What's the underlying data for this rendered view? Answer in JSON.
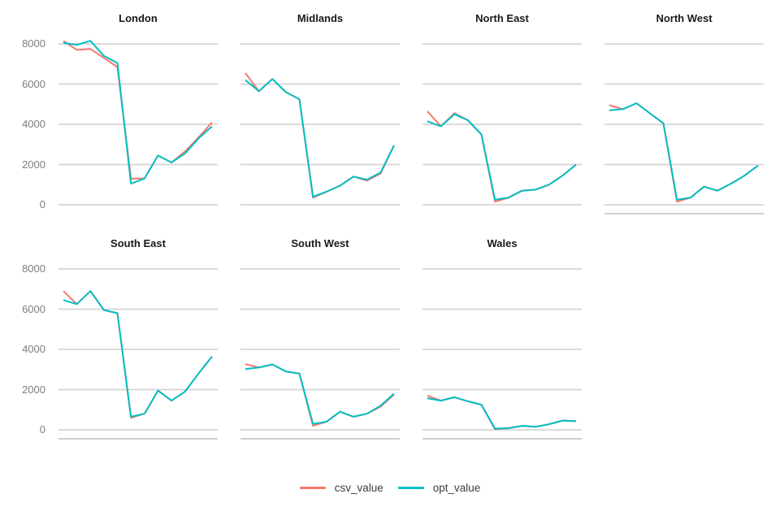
{
  "chart_data": {
    "type": "line",
    "title": "",
    "xlabel": "",
    "ylabel": "",
    "ylim": [
      0,
      8000
    ],
    "yticks": [
      0,
      2000,
      4000,
      6000,
      8000
    ],
    "ytick_labels": [
      "0",
      "2000",
      "4000",
      "6000",
      "8000"
    ],
    "x_tick_labels_visible": false,
    "n_points_per_series": 12,
    "grid": "horizontal-major-only",
    "legend_position": "bottom-center",
    "layout": "facet-wrap 2 rows x 4 cols, last slot empty",
    "colors": {
      "csv_value": "#F8766D",
      "opt_value": "#00BFC4",
      "gridline": "#d4d4d4",
      "axis_line": "#cfcfcf",
      "facet_title_text": "#1a1a1a",
      "axis_tick_text": "#7d7d7d",
      "legend_text": "#3c3c3c",
      "background": "#ffffff"
    },
    "legend": [
      {
        "label": "csv_value",
        "color": "#F8766D"
      },
      {
        "label": "opt_value",
        "color": "#00BFC4"
      }
    ],
    "facets": [
      {
        "title": "London",
        "csv_value": [
          8150,
          7700,
          7750,
          7300,
          6850,
          1300,
          1300,
          2450,
          2100,
          2650,
          3350,
          4100
        ],
        "opt_value": [
          8050,
          7950,
          8150,
          7400,
          7050,
          1050,
          1300,
          2450,
          2100,
          2550,
          3300,
          3900
        ]
      },
      {
        "title": "Midlands",
        "csv_value": [
          6550,
          5650,
          6250,
          5600,
          5250,
          350,
          650,
          950,
          1400,
          1200,
          1550,
          2950
        ],
        "opt_value": [
          6200,
          5650,
          6250,
          5600,
          5250,
          400,
          650,
          950,
          1400,
          1250,
          1600,
          2950
        ]
      },
      {
        "title": "North East",
        "csv_value": [
          4650,
          3900,
          4550,
          4200,
          3500,
          150,
          350,
          700,
          750,
          1000,
          1450,
          2000
        ],
        "opt_value": [
          4150,
          3900,
          4500,
          4200,
          3500,
          250,
          350,
          700,
          750,
          1000,
          1450,
          2000
        ]
      },
      {
        "title": "North West",
        "csv_value": [
          4950,
          4750,
          5050,
          4550,
          4050,
          150,
          350,
          900,
          700,
          1050,
          1450,
          1950
        ],
        "opt_value": [
          4700,
          4750,
          5050,
          4550,
          4050,
          250,
          350,
          900,
          700,
          1050,
          1450,
          1950
        ]
      },
      {
        "title": "South East",
        "csv_value": [
          6900,
          6250,
          6900,
          5950,
          5800,
          600,
          800,
          1950,
          1450,
          1900,
          2800,
          3650
        ],
        "opt_value": [
          6450,
          6250,
          6900,
          5950,
          5800,
          650,
          800,
          1950,
          1450,
          1900,
          2800,
          3650
        ]
      },
      {
        "title": "South West",
        "csv_value": [
          3270,
          3100,
          3250,
          2900,
          2800,
          200,
          400,
          900,
          650,
          800,
          1150,
          1750
        ],
        "opt_value": [
          3020,
          3100,
          3250,
          2900,
          2800,
          300,
          400,
          900,
          650,
          800,
          1200,
          1800
        ]
      },
      {
        "title": "Wales",
        "csv_value": [
          1700,
          1450,
          1620,
          1420,
          1250,
          30,
          80,
          200,
          150,
          280,
          460,
          430
        ],
        "opt_value": [
          1570,
          1450,
          1620,
          1420,
          1250,
          60,
          80,
          200,
          150,
          280,
          460,
          430
        ]
      }
    ]
  }
}
